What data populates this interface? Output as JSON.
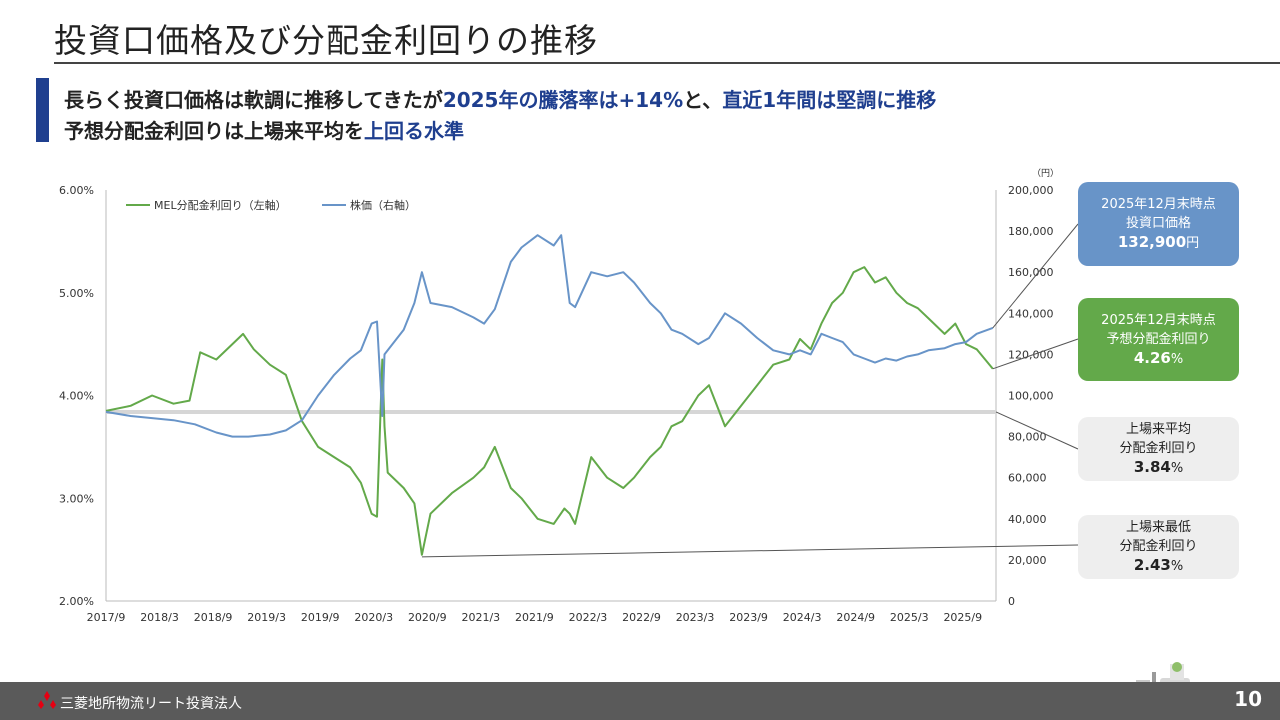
{
  "header": {
    "title": "投資口価格及び分配金利回りの推移",
    "line1": {
      "a": "長らく投資口価格は軟調に推移してきたが",
      "b": "2025年の騰落率は+14%",
      "c": "と、",
      "d": "直近1年間は堅調に推移"
    },
    "line2": {
      "a": "予想分配金利回りは上場来平均を",
      "b": "上回る水準"
    }
  },
  "colors": {
    "yield": "#63a94a",
    "price": "#6894c8",
    "accent": "#1f3f8f",
    "average_line": "#d6d6d6"
  },
  "chart_data": {
    "type": "line",
    "title": "",
    "x_ticks": [
      "2017/9",
      "2018/3",
      "2018/9",
      "2019/3",
      "2019/9",
      "2020/3",
      "2020/9",
      "2021/3",
      "2021/9",
      "2022/3",
      "2022/9",
      "2023/3",
      "2023/9",
      "2024/3",
      "2024/9",
      "2025/3",
      "2025/9"
    ],
    "x_range": [
      "2017-09",
      "2025-12"
    ],
    "left_axis": {
      "label": "",
      "range": [
        2.0,
        6.0
      ],
      "ticks": [
        "2.00%",
        "3.00%",
        "4.00%",
        "5.00%",
        "6.00%"
      ]
    },
    "right_axis": {
      "unit": "（円）",
      "range": [
        0,
        200000
      ],
      "ticks": [
        "0",
        "20,000",
        "40,000",
        "60,000",
        "80,000",
        "100,000",
        "120,000",
        "140,000",
        "160,000",
        "180,000",
        "200,000"
      ]
    },
    "legend": [
      "MEL分配金利回り（左軸）",
      "株価（右軸）"
    ],
    "average_yield": 3.84,
    "series": [
      {
        "name": "MEL分配金利回り（左軸）",
        "axis": "left",
        "x": [
          2017.67,
          2017.9,
          2018.1,
          2018.3,
          2018.45,
          2018.55,
          2018.7,
          2018.85,
          2018.95,
          2019.05,
          2019.2,
          2019.35,
          2019.5,
          2019.65,
          2019.8,
          2019.95,
          2020.05,
          2020.15,
          2020.2,
          2020.25,
          2020.27,
          2020.3,
          2020.45,
          2020.55,
          2020.62,
          2020.7,
          2020.9,
          2021.1,
          2021.2,
          2021.3,
          2021.45,
          2021.55,
          2021.7,
          2021.85,
          2021.95,
          2022.0,
          2022.05,
          2022.2,
          2022.35,
          2022.5,
          2022.6,
          2022.75,
          2022.85,
          2022.95,
          2023.05,
          2023.2,
          2023.3,
          2023.45,
          2023.6,
          2023.75,
          2023.9,
          2024.05,
          2024.15,
          2024.25,
          2024.35,
          2024.45,
          2024.55,
          2024.65,
          2024.75,
          2024.85,
          2024.95,
          2025.05,
          2025.15,
          2025.25,
          2025.35,
          2025.5,
          2025.6,
          2025.7,
          2025.8,
          2025.95
        ],
        "y": [
          3.85,
          3.9,
          4.0,
          3.92,
          3.95,
          4.42,
          4.35,
          4.5,
          4.6,
          4.45,
          4.3,
          4.2,
          3.75,
          3.5,
          3.4,
          3.3,
          3.15,
          2.85,
          2.82,
          4.35,
          3.7,
          3.25,
          3.1,
          2.95,
          2.45,
          2.85,
          3.05,
          3.2,
          3.3,
          3.5,
          3.1,
          3.0,
          2.8,
          2.75,
          2.9,
          2.85,
          2.75,
          3.4,
          3.2,
          3.1,
          3.2,
          3.4,
          3.5,
          3.7,
          3.75,
          4.0,
          4.1,
          3.7,
          3.9,
          4.1,
          4.3,
          4.35,
          4.55,
          4.45,
          4.7,
          4.9,
          5.0,
          5.2,
          5.25,
          5.1,
          5.15,
          5.0,
          4.9,
          4.85,
          4.75,
          4.6,
          4.7,
          4.5,
          4.45,
          4.26
        ]
      },
      {
        "name": "株価（右軸）",
        "axis": "right",
        "x": [
          2017.67,
          2017.9,
          2018.1,
          2018.3,
          2018.5,
          2018.7,
          2018.85,
          2019.0,
          2019.2,
          2019.35,
          2019.5,
          2019.65,
          2019.8,
          2019.95,
          2020.05,
          2020.15,
          2020.2,
          2020.25,
          2020.27,
          2020.3,
          2020.45,
          2020.55,
          2020.62,
          2020.7,
          2020.9,
          2021.1,
          2021.2,
          2021.3,
          2021.45,
          2021.55,
          2021.7,
          2021.85,
          2021.92,
          2022.0,
          2022.05,
          2022.2,
          2022.35,
          2022.5,
          2022.6,
          2022.75,
          2022.85,
          2022.95,
          2023.05,
          2023.2,
          2023.3,
          2023.45,
          2023.6,
          2023.75,
          2023.9,
          2024.05,
          2024.15,
          2024.25,
          2024.35,
          2024.45,
          2024.55,
          2024.65,
          2024.75,
          2024.85,
          2024.95,
          2025.05,
          2025.15,
          2025.25,
          2025.35,
          2025.5,
          2025.6,
          2025.7,
          2025.8,
          2025.95
        ],
        "y": [
          92000,
          90000,
          89000,
          88000,
          86000,
          82000,
          80000,
          80000,
          81000,
          83000,
          88000,
          100000,
          110000,
          118000,
          122000,
          135000,
          136000,
          90000,
          120000,
          122000,
          132000,
          145000,
          160000,
          145000,
          143000,
          138000,
          135000,
          142000,
          165000,
          172000,
          178000,
          173000,
          178000,
          145000,
          143000,
          160000,
          158000,
          160000,
          155000,
          145000,
          140000,
          132000,
          130000,
          125000,
          128000,
          140000,
          135000,
          128000,
          122000,
          120000,
          122000,
          120000,
          130000,
          128000,
          126000,
          120000,
          118000,
          116000,
          118000,
          117000,
          119000,
          120000,
          122000,
          123000,
          125000,
          126000,
          130000,
          132900
        ]
      }
    ],
    "annotations": [
      {
        "label": "2025年12月末時点",
        "sub": "投資口価格",
        "value": "132,900",
        "unit": "円"
      },
      {
        "label": "2025年12月末時点",
        "sub": "予想分配金利回り",
        "value": "4.26",
        "unit": "%"
      },
      {
        "label": "上場来平均",
        "sub": "分配金利回り",
        "value": "3.84",
        "unit": "%"
      },
      {
        "label": "上場来最低",
        "sub": "分配金利回り",
        "value": "2.43",
        "unit": "%"
      }
    ]
  },
  "footer": {
    "company": "三菱地所物流リート投資法人",
    "page": "10"
  }
}
